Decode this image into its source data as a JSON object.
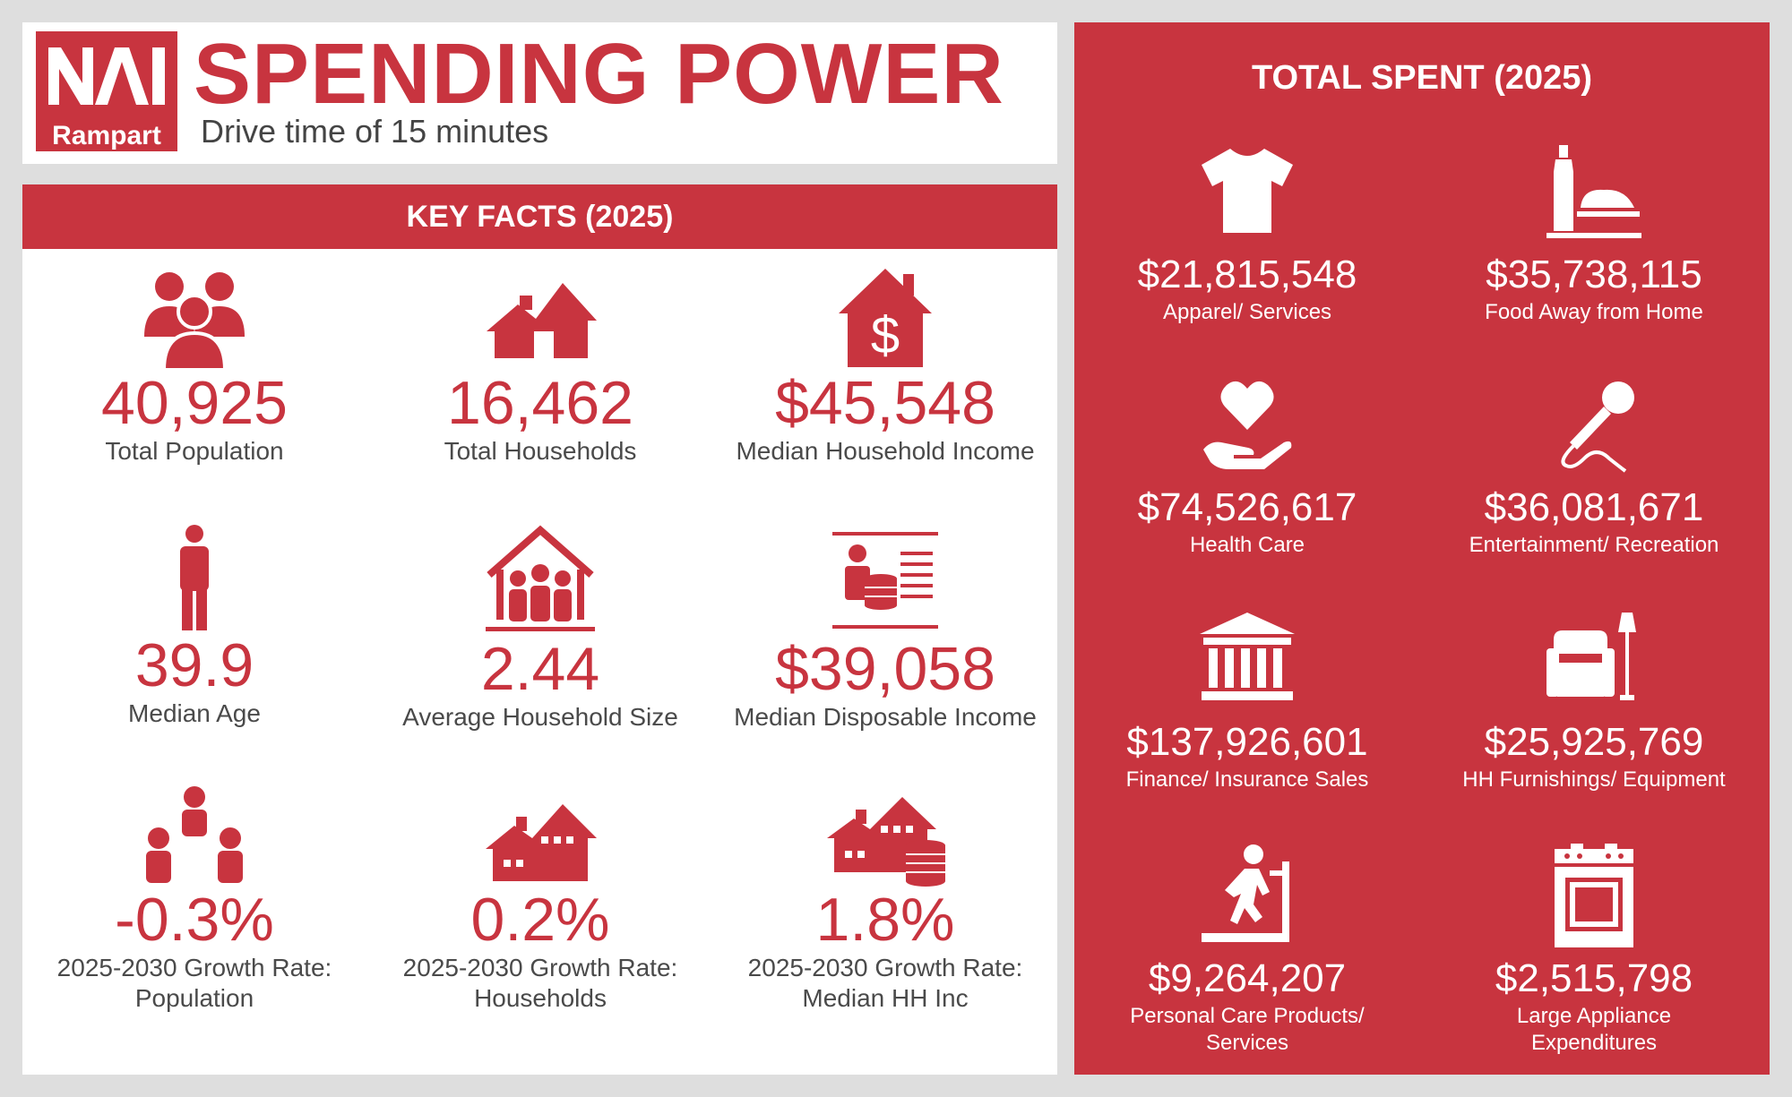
{
  "header": {
    "logo_top": "NAI",
    "logo_sub": "Rampart",
    "title": "SPENDING POWER",
    "subtitle": "Drive time of 15 minutes"
  },
  "key_facts": {
    "heading": "KEY FACTS (2025)",
    "items": [
      {
        "icon": "people-group-icon",
        "value": "40,925",
        "label": "Total Population"
      },
      {
        "icon": "house-icon",
        "value": "16,462",
        "label": "Total Households"
      },
      {
        "icon": "house-dollar-icon",
        "value": "$45,548",
        "label": "Median Household Income"
      },
      {
        "icon": "person-icon",
        "value": "39.9",
        "label": "Median Age"
      },
      {
        "icon": "family-house-icon",
        "value": "2.44",
        "label": "Average Household Size"
      },
      {
        "icon": "disposable-income-icon",
        "value": "$39,058",
        "label": "Median Disposable Income"
      },
      {
        "icon": "population-growth-icon",
        "value": "-0.3%",
        "label": "2025-2030 Growth Rate: Population"
      },
      {
        "icon": "households-growth-icon",
        "value": "0.2%",
        "label": "2025-2030 Growth Rate: Households"
      },
      {
        "icon": "income-growth-icon",
        "value": "1.8%",
        "label": "2025-2030 Growth Rate: Median HH Inc"
      }
    ]
  },
  "total_spent": {
    "heading": "TOTAL SPENT (2025)",
    "items": [
      {
        "icon": "tshirt-icon",
        "value": "$21,815,548",
        "label": "Apparel/ Services"
      },
      {
        "icon": "food-plate-icon",
        "value": "$35,738,115",
        "label": "Food Away from Home"
      },
      {
        "icon": "heart-hand-icon",
        "value": "$74,526,617",
        "label": "Health Care"
      },
      {
        "icon": "microphone-icon",
        "value": "$36,081,671",
        "label": "Entertainment/ Recreation"
      },
      {
        "icon": "bank-icon",
        "value": "$137,926,601",
        "label": "Finance/ Insurance Sales"
      },
      {
        "icon": "armchair-lamp-icon",
        "value": "$25,925,769",
        "label": "HH Furnishings/ Equipment"
      },
      {
        "icon": "treadmill-icon",
        "value": "$9,264,207",
        "label": "Personal Care Products/ Services"
      },
      {
        "icon": "stove-icon",
        "value": "$2,515,798",
        "label": "Large Appliance Expenditures"
      }
    ]
  },
  "colors": {
    "brand_red": "#c8343f",
    "background": "#dedede",
    "text_gray": "#4a4a4a"
  }
}
